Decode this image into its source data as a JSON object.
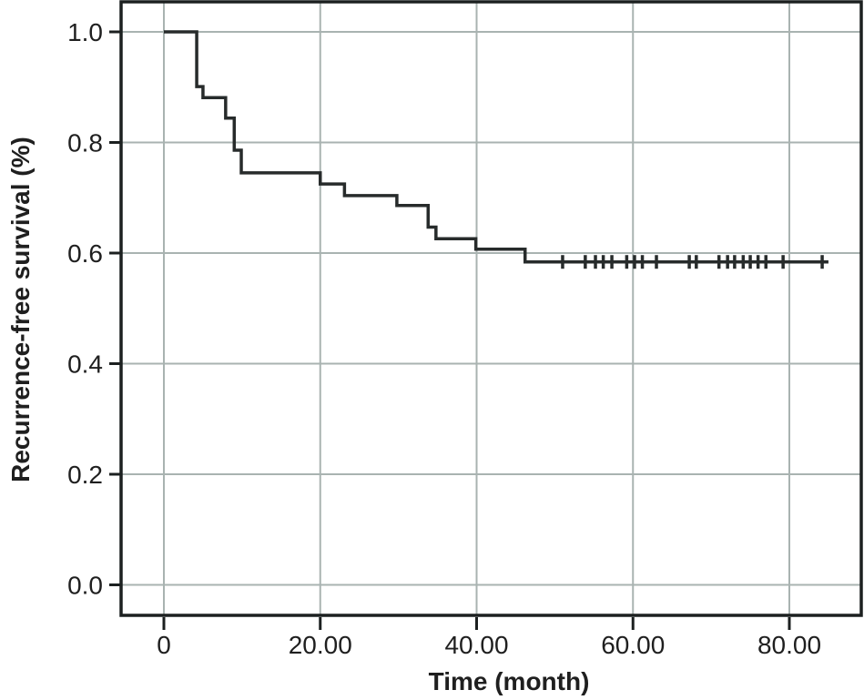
{
  "chart_data": {
    "type": "line",
    "subtype": "kaplan-meier-step",
    "title": "",
    "xlabel": "Time (month)",
    "ylabel": "Recurrence-free survival (%)",
    "grid": true,
    "legend": "none",
    "xlim_months": [
      -5.5,
      89.2
    ],
    "ylim": [
      -0.055,
      1.054
    ],
    "x_ticks": [
      {
        "value": 0,
        "label": "0"
      },
      {
        "value": 20,
        "label": "20.00"
      },
      {
        "value": 40,
        "label": "40.00"
      },
      {
        "value": 60,
        "label": "60.00"
      },
      {
        "value": 80,
        "label": "80.00"
      }
    ],
    "y_ticks": [
      {
        "value": 0.0,
        "label": "0.0"
      },
      {
        "value": 0.2,
        "label": "0.2"
      },
      {
        "value": 0.4,
        "label": "0.4"
      },
      {
        "value": 0.6,
        "label": "0.6"
      },
      {
        "value": 0.8,
        "label": "0.8"
      },
      {
        "value": 1.0,
        "label": "1.0"
      }
    ],
    "series": [
      {
        "name": "Recurrence-free survival",
        "steps": [
          [
            0.0,
            1.0
          ],
          [
            4.2,
            0.901
          ],
          [
            5.0,
            0.881
          ],
          [
            7.9,
            0.844
          ],
          [
            9.0,
            0.786
          ],
          [
            9.9,
            0.745
          ],
          [
            20.0,
            0.725
          ],
          [
            23.1,
            0.704
          ],
          [
            29.8,
            0.686
          ],
          [
            33.8,
            0.647
          ],
          [
            34.8,
            0.626
          ],
          [
            39.9,
            0.607
          ],
          [
            46.2,
            0.584
          ],
          [
            85.0,
            0.584
          ]
        ],
        "censor_times": [
          51.0,
          53.9,
          55.2,
          56.2,
          57.3,
          59.2,
          60.2,
          61.2,
          63.0,
          67.2,
          68.1,
          71.0,
          72.1,
          73.0,
          74.1,
          75.0,
          76.0,
          77.0,
          79.2,
          84.2
        ],
        "censor_value": 0.584
      }
    ]
  },
  "colors": {
    "curve": "#272b2b",
    "grid": "#a9b3b1",
    "frame": "#1c2020",
    "text": "#1f1f1f",
    "background": "#ffffff"
  }
}
